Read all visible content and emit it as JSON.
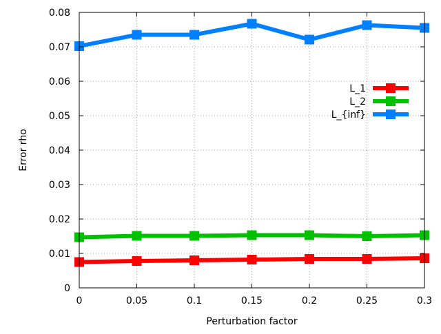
{
  "chart_data": {
    "type": "line",
    "title": "",
    "xlabel": "Perturbation factor",
    "ylabel": "Error rho",
    "xlim": [
      0,
      0.3
    ],
    "ylim": [
      0,
      0.08
    ],
    "x": [
      0,
      0.05,
      0.1,
      0.15,
      0.2,
      0.25,
      0.3
    ],
    "x_ticks": [
      "0",
      "0.05",
      "0.1",
      "0.15",
      "0.2",
      "0.25",
      "0.3"
    ],
    "y_ticks": [
      "0",
      "0.01",
      "0.02",
      "0.03",
      "0.04",
      "0.05",
      "0.06",
      "0.07",
      "0.08"
    ],
    "grid": true,
    "legend_position": "top-right",
    "series": [
      {
        "name": "L_1",
        "color": "#ff0000",
        "values": [
          0.0075,
          0.0078,
          0.008,
          0.0082,
          0.0084,
          0.0084,
          0.0086
        ]
      },
      {
        "name": "L_2",
        "color": "#00c000",
        "values": [
          0.0147,
          0.0151,
          0.0151,
          0.0153,
          0.0153,
          0.015,
          0.0153
        ]
      },
      {
        "name": "L_{inf}",
        "color": "#0080ff",
        "values": [
          0.0702,
          0.0735,
          0.0735,
          0.0767,
          0.0721,
          0.0763,
          0.0755
        ]
      }
    ]
  }
}
